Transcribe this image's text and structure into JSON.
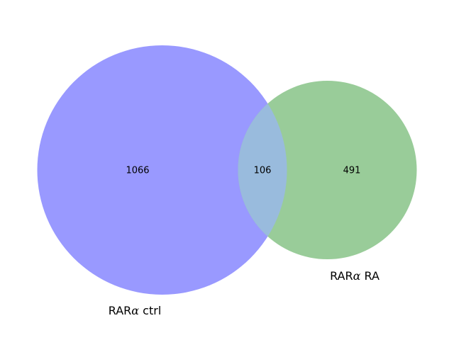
{
  "venn": {
    "sets": [
      {
        "name_prefix": "RAR",
        "name_greek": "α",
        "name_suffix": " ctrl",
        "only_count": "1066",
        "color": "#9999ff"
      },
      {
        "name_prefix": "RAR",
        "name_greek": "α",
        "name_suffix": " RA",
        "only_count": "491",
        "color": "#99cc99"
      }
    ],
    "intersection_count": "106",
    "intersection_color": "#99bbdd"
  }
}
